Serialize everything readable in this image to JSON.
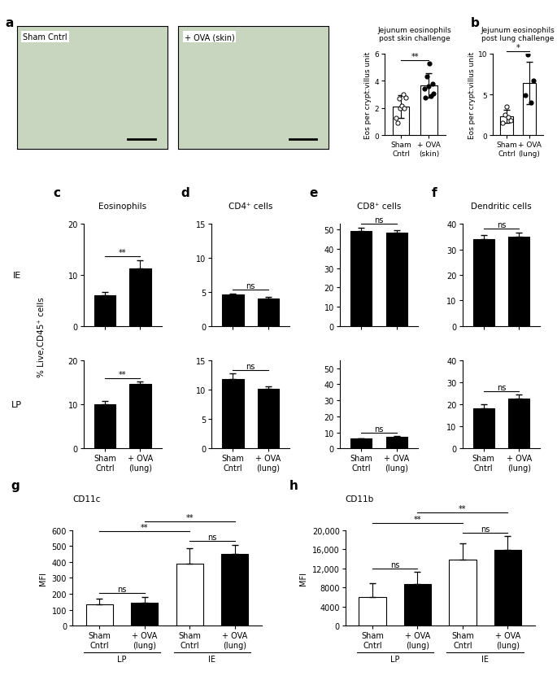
{
  "chart_data": [
    {
      "panel": "a",
      "type": "image",
      "title": "Sham Cntrl"
    },
    {
      "panel": "a",
      "type": "image",
      "title": "+ OVA (skin)"
    },
    {
      "panel": "a",
      "type": "bar",
      "title": "Jejunum eosinophils\npost skin challenge",
      "y_label": "Eos per crypt:villus unit",
      "categories": [
        "Sham\nCntrl",
        "+ OVA\n(skin)"
      ],
      "values": [
        2.1,
        3.65
      ],
      "errors": [
        0.85,
        0.9
      ],
      "points": [
        [
          1.3,
          0.9,
          2.7,
          2.0,
          2.2,
          3.0,
          2.0,
          2.8
        ],
        [
          3.4,
          2.8,
          4.3,
          3.6,
          5.3,
          2.9,
          3.8,
          3.1
        ]
      ],
      "colors": [
        "#ffffff",
        "#ffffff"
      ],
      "ylim": [
        0,
        6
      ],
      "yticks": [
        0,
        2,
        4,
        6
      ],
      "comparisons": [
        {
          "pair": [
            0,
            1
          ],
          "label": "**"
        }
      ]
    },
    {
      "panel": "b",
      "type": "bar",
      "title": "Jejunum eosinophils\npost lung challenge",
      "y_label": "Eos per crypt:villus unit",
      "categories": [
        "Sham\nCntrl",
        "+ OVA\n(lung)"
      ],
      "values": [
        2.3,
        6.4
      ],
      "errors": [
        0.8,
        2.6
      ],
      "points": [
        [
          1.5,
          2.5,
          3.5,
          2.2,
          1.8
        ],
        [
          4.9,
          9.9,
          4.0,
          6.7
        ]
      ],
      "colors": [
        "#ffffff",
        "#ffffff"
      ],
      "ylim": [
        0,
        10
      ],
      "yticks": [
        0,
        5,
        10
      ],
      "comparisons": [
        {
          "pair": [
            0,
            1
          ],
          "label": "*"
        }
      ]
    },
    {
      "panel": "c",
      "type": "bar",
      "title": "Eosinophils",
      "categories": [
        "Sham\nCntrl",
        "+ OVA\n(lung)"
      ],
      "colors": [
        "#000000",
        "#000000"
      ],
      "rows": [
        {
          "values": [
            6.0,
            11.3
          ],
          "errors": [
            0.7,
            1.5
          ],
          "ylim": [
            0,
            20
          ],
          "yticks": [
            0,
            10,
            20
          ],
          "comparisons": [
            {
              "pair": [
                0,
                1
              ],
              "label": "**"
            }
          ]
        },
        {
          "values": [
            10.0,
            14.6
          ],
          "errors": [
            0.8,
            0.5
          ],
          "ylim": [
            0,
            20
          ],
          "yticks": [
            0,
            10,
            20
          ],
          "comparisons": [
            {
              "pair": [
                0,
                1
              ],
              "label": "**"
            }
          ]
        }
      ]
    },
    {
      "panel": "d",
      "type": "bar",
      "title": "CD4⁺ cells",
      "categories": [
        "Sham\nCntrl",
        "+ OVA\n(lung)"
      ],
      "colors": [
        "#000000",
        "#000000"
      ],
      "rows": [
        {
          "values": [
            4.6,
            4.0
          ],
          "errors": [
            0.2,
            0.3
          ],
          "ylim": [
            0,
            15
          ],
          "yticks": [
            0,
            5,
            10,
            15
          ],
          "comparisons": [
            {
              "pair": [
                0,
                1
              ],
              "label": "ns"
            }
          ]
        },
        {
          "values": [
            11.8,
            10.1
          ],
          "errors": [
            0.9,
            0.4
          ],
          "ylim": [
            0,
            15
          ],
          "yticks": [
            0,
            5,
            10,
            15
          ],
          "comparisons": [
            {
              "pair": [
                0,
                1
              ],
              "label": "ns"
            }
          ]
        }
      ]
    },
    {
      "panel": "e",
      "type": "bar",
      "title": "CD8⁺ cells",
      "categories": [
        "Sham\nCntrl",
        "+ OVA\n(lung)"
      ],
      "colors": [
        "#000000",
        "#000000"
      ],
      "rows": [
        {
          "values": [
            49.5,
            48.3
          ],
          "errors": [
            1.5,
            1.5
          ],
          "ylim": [
            0,
            53
          ],
          "yticks": [
            0,
            10,
            20,
            30,
            40,
            50
          ],
          "comparisons": [
            {
              "pair": [
                0,
                1
              ],
              "label": "ns"
            }
          ]
        },
        {
          "values": [
            6.2,
            7.2
          ],
          "errors": [
            0.3,
            0.4
          ],
          "ylim": [
            0,
            55
          ],
          "yticks": [
            0,
            10,
            20,
            30,
            40,
            50
          ],
          "comparisons": [
            {
              "pair": [
                0,
                1
              ],
              "label": "ns"
            }
          ]
        }
      ]
    },
    {
      "panel": "f",
      "type": "bar",
      "title": "Dendritic cells",
      "categories": [
        "Sham\nCntrl",
        "+ OVA\n(lung)"
      ],
      "colors": [
        "#000000",
        "#000000"
      ],
      "rows": [
        {
          "values": [
            34.0,
            35.0
          ],
          "errors": [
            1.5,
            1.5
          ],
          "ylim": [
            0,
            40
          ],
          "yticks": [
            0,
            10,
            20,
            30,
            40
          ],
          "comparisons": [
            {
              "pair": [
                0,
                1
              ],
              "label": "ns"
            }
          ]
        },
        {
          "values": [
            18.0,
            22.5
          ],
          "errors": [
            2.0,
            1.8
          ],
          "ylim": [
            0,
            40
          ],
          "yticks": [
            0,
            10,
            20,
            30,
            40
          ],
          "comparisons": [
            {
              "pair": [
                0,
                1
              ],
              "label": "ns"
            }
          ]
        }
      ]
    },
    {
      "panel": "g",
      "type": "bar",
      "title": "CD11c",
      "y_label": "MFI",
      "categories": [
        "Sham\nCntrl",
        "+ OVA\n(lung)",
        "Sham\nCntrl",
        "+ OVA\n(lung)"
      ],
      "groups": [
        {
          "label": "LP",
          "categories": [
            0,
            1
          ]
        },
        {
          "label": "IE",
          "categories": [
            2,
            3
          ]
        }
      ],
      "values": [
        135,
        143,
        388,
        452
      ],
      "errors": [
        35,
        38,
        100,
        55
      ],
      "colors": [
        "#ffffff",
        "#000000",
        "#ffffff",
        "#000000"
      ],
      "ylim": [
        0,
        600
      ],
      "yticks": [
        0,
        100,
        200,
        300,
        400,
        500,
        600
      ],
      "comparisons": [
        {
          "pair": [
            0,
            1
          ],
          "label": "ns"
        },
        {
          "pair": [
            2,
            3
          ],
          "label": "ns"
        },
        {
          "pair": [
            0,
            2
          ],
          "label": "**"
        },
        {
          "pair": [
            1,
            3
          ],
          "label": "**"
        }
      ]
    },
    {
      "panel": "h",
      "type": "bar",
      "title": "CD11b",
      "y_label": "MFI",
      "categories": [
        "Sham\nCntrl",
        "+ OVA\n(lung)",
        "Sham\nCntrl",
        "+ OVA\n(lung)"
      ],
      "groups": [
        {
          "label": "LP",
          "categories": [
            0,
            1
          ]
        },
        {
          "label": "IE",
          "categories": [
            2,
            3
          ]
        }
      ],
      "values": [
        6000,
        8700,
        13800,
        15900
      ],
      "errors": [
        2800,
        2500,
        3400,
        2800
      ],
      "colors": [
        "#ffffff",
        "#000000",
        "#ffffff",
        "#000000"
      ],
      "ylim": [
        0,
        20000
      ],
      "yticks": [
        0,
        4000,
        8000,
        {
          "value": 12000,
          "label": "12,000"
        },
        {
          "value": 16000,
          "label": "16,000"
        },
        {
          "value": 20000,
          "label": "20,000"
        }
      ],
      "comparisons": [
        {
          "pair": [
            0,
            1
          ],
          "label": "ns"
        },
        {
          "pair": [
            2,
            3
          ],
          "label": "ns"
        },
        {
          "pair": [
            0,
            2
          ],
          "label": "**"
        },
        {
          "pair": [
            1,
            3
          ],
          "label": "**"
        }
      ]
    }
  ],
  "row_labels": [
    "IE",
    "LP"
  ],
  "shared_y_label": "% Live,CD45⁺ cells"
}
